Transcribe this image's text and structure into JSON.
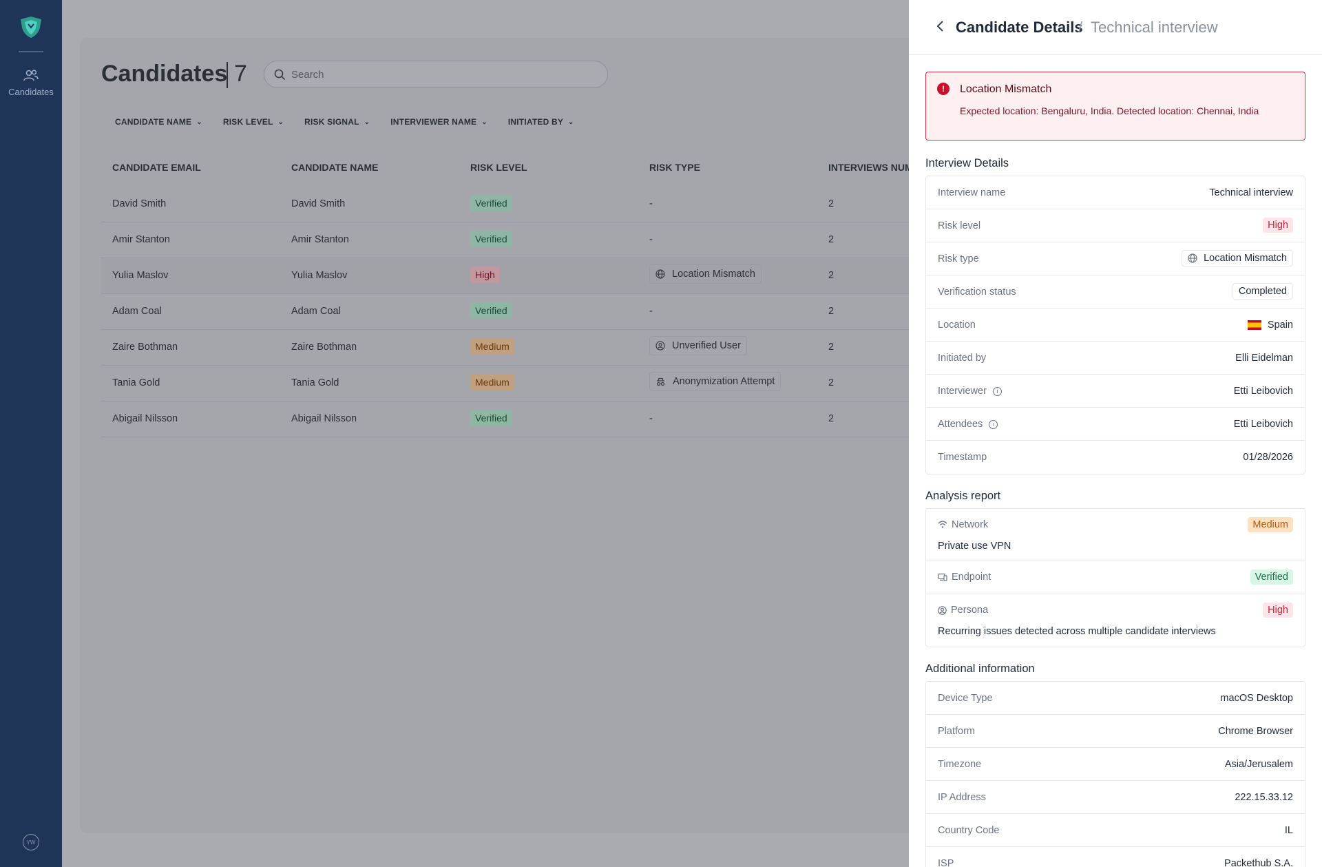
{
  "sidebar": {
    "nav_label": "Candidates",
    "avatar_initials": "YW"
  },
  "main": {
    "title": "Candidates",
    "count": "7",
    "search_placeholder": "Search",
    "filters": [
      "CANDIDATE NAME",
      "RISK LEVEL",
      "RISK SIGNAL",
      "INTERVIEWER NAME",
      "INITIATED BY"
    ],
    "columns": [
      "CANDIDATE EMAIL",
      "CANDIDATE NAME",
      "RISK LEVEL",
      "RISK TYPE",
      "INTERVIEWS NUM"
    ],
    "rows": [
      {
        "email": "David Smith",
        "name": "David Smith",
        "risk": "Verified",
        "risk_class": "v",
        "type": "-",
        "type_icon": "",
        "num": "2"
      },
      {
        "email": "Amir Stanton",
        "name": "Amir Stanton",
        "risk": "Verified",
        "risk_class": "v",
        "type": "-",
        "type_icon": "",
        "num": "2"
      },
      {
        "email": "Yulia Maslov",
        "name": "Yulia Maslov",
        "risk": "High",
        "risk_class": "h",
        "type": "Location Mismatch",
        "type_icon": "globe-icon",
        "num": "2"
      },
      {
        "email": "Adam Coal",
        "name": "Adam Coal",
        "risk": "Verified",
        "risk_class": "v",
        "type": "-",
        "type_icon": "",
        "num": "2"
      },
      {
        "email": "Zaire Bothman",
        "name": "Zaire Bothman",
        "risk": "Medium",
        "risk_class": "m",
        "type": "Unverified User",
        "type_icon": "user-circle-icon",
        "num": "2"
      },
      {
        "email": "Tania Gold",
        "name": "Tania Gold",
        "risk": "Medium",
        "risk_class": "m",
        "type": "Anonymization Attempt",
        "type_icon": "incognito-icon",
        "num": "2"
      },
      {
        "email": "Abigail Nilsson",
        "name": "Abigail Nilsson",
        "risk": "Verified",
        "risk_class": "v",
        "type": "-",
        "type_icon": "",
        "num": "2"
      }
    ]
  },
  "panel": {
    "title": "Candidate Details",
    "separator": "/",
    "subtitle": "Technical interview",
    "alert": {
      "title": "Location Mismatch",
      "body": "Expected location: Bengaluru, India. Detected location: Chennai, India"
    },
    "interview_details": {
      "heading": "Interview Details",
      "interview_name_label": "Interview name",
      "interview_name": "Technical interview",
      "risk_level_label": "Risk level",
      "risk_level": "High",
      "risk_type_label": "Risk type",
      "risk_type": "Location Mismatch",
      "verification_status_label": "Verification status",
      "verification_status": "Completed",
      "location_label": "Location",
      "location": "Spain",
      "initiated_by_label": "Initiated by",
      "initiated_by": "Elli Eidelman",
      "interviewer_label": "Interviewer",
      "interviewer": "Etti Leibovich",
      "attendees_label": "Attendees",
      "attendees": "Etti Leibovich",
      "timestamp_label": "Timestamp",
      "timestamp": "01/28/2026"
    },
    "analysis": {
      "heading": "Analysis report",
      "network_label": "Network",
      "network_level": "Medium",
      "network_desc": "Private use VPN",
      "endpoint_label": "Endpoint",
      "endpoint_level": "Verified",
      "persona_label": "Persona",
      "persona_level": "High",
      "persona_desc": "Recurring issues detected across multiple candidate interviews"
    },
    "additional": {
      "heading": "Additional information",
      "device_type_label": "Device Type",
      "device_type": "macOS Desktop",
      "platform_label": "Platform",
      "platform": "Chrome Browser",
      "timezone_label": "Timezone",
      "timezone": "Asia/Jerusalem",
      "ip_label": "IP Address",
      "ip": "222.15.33.12",
      "country_code_label": "Country Code",
      "country_code": "IL",
      "isp_label": "ISP",
      "isp": "Packethub S.A."
    }
  }
}
